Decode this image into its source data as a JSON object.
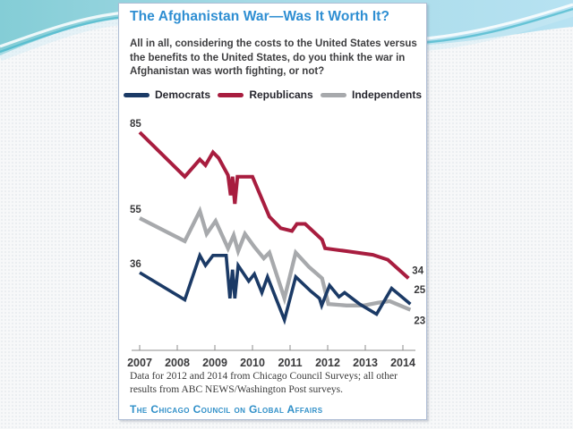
{
  "theme": {
    "band_left_color": "#84cdd6",
    "band_right_color": "#b7e2f2",
    "accent_blue": "#2e8ed2"
  },
  "card": {
    "title": "The Afghanistan War—Was It Worth It?",
    "title_color": "#2e8ed2",
    "subtitle_lines": [
      "All in all, considering the costs to the United States versus",
      "the benefits to the United States, do you think the war in",
      "Afghanistan was worth fighting, or not?"
    ],
    "legend": [
      {
        "label": "Democrats",
        "color": "#1b3a66"
      },
      {
        "label": "Republicans",
        "color": "#a81d3f"
      },
      {
        "label": "Independents",
        "color": "#a7a9ac"
      }
    ],
    "footnote_lines": [
      "Data for 2012 and 2014 from Chicago Council Surveys; all other",
      "results from ABC NEWS/Washington Post surveys."
    ],
    "brand": "The Chicago Council on Global Affairs",
    "brand_color": "#2f8fc8"
  },
  "chart_data": {
    "type": "line",
    "title": "The Afghanistan War—Was It Worth It?",
    "xlabel": "",
    "ylabel": "",
    "x_ticks": [
      2007,
      2008,
      2009,
      2010,
      2011,
      2012,
      2013,
      2014
    ],
    "x_range": [
      2007,
      2014.2
    ],
    "y_axis_visible": false,
    "grid": false,
    "legend_position": "top",
    "axis_color": "#8c8c8c",
    "label_color": "#3a3a3c",
    "series": [
      {
        "name": "Democrats",
        "color": "#1b3a66",
        "start_label": "36",
        "end_label": "25",
        "points": [
          [
            2007,
            36
          ],
          [
            2008.2,
            26.5
          ],
          [
            2008.6,
            42
          ],
          [
            2008.75,
            38.5
          ],
          [
            2008.95,
            42
          ],
          [
            2009.3,
            42
          ],
          [
            2009.4,
            27
          ],
          [
            2009.47,
            37
          ],
          [
            2009.53,
            27
          ],
          [
            2009.62,
            38.5
          ],
          [
            2009.9,
            33
          ],
          [
            2010.05,
            35.5
          ],
          [
            2010.25,
            29
          ],
          [
            2010.4,
            34.5
          ],
          [
            2010.85,
            19.5
          ],
          [
            2011.15,
            34.5
          ],
          [
            2011.55,
            29.5
          ],
          [
            2011.78,
            27
          ],
          [
            2011.84,
            24.5
          ],
          [
            2012.05,
            31.5
          ],
          [
            2012.3,
            27.5
          ],
          [
            2012.45,
            29
          ],
          [
            2012.85,
            25
          ],
          [
            2013.3,
            21.5
          ],
          [
            2013.7,
            30.5
          ],
          [
            2014.2,
            25
          ]
        ]
      },
      {
        "name": "Republicans",
        "color": "#a81d3f",
        "start_label": "85",
        "end_label": "34",
        "points": [
          [
            2007,
            85
          ],
          [
            2008.2,
            69.5
          ],
          [
            2008.6,
            75.5
          ],
          [
            2008.75,
            73.5
          ],
          [
            2008.95,
            78
          ],
          [
            2009.1,
            76
          ],
          [
            2009.35,
            70
          ],
          [
            2009.42,
            63
          ],
          [
            2009.47,
            69.5
          ],
          [
            2009.53,
            60
          ],
          [
            2009.6,
            69.5
          ],
          [
            2010,
            69.5
          ],
          [
            2010.45,
            55.5
          ],
          [
            2010.75,
            51.5
          ],
          [
            2011.05,
            50.5
          ],
          [
            2011.18,
            53
          ],
          [
            2011.4,
            53
          ],
          [
            2011.85,
            47.5
          ],
          [
            2011.93,
            44.5
          ],
          [
            2012.5,
            43.5
          ],
          [
            2013.2,
            42.2
          ],
          [
            2013.6,
            40.5
          ],
          [
            2014.15,
            34
          ]
        ]
      },
      {
        "name": "Independents",
        "color": "#a7a9ac",
        "start_label": "55",
        "end_label": "23",
        "points": [
          [
            2007,
            55
          ],
          [
            2008.2,
            47
          ],
          [
            2008.6,
            57.5
          ],
          [
            2008.78,
            49.5
          ],
          [
            2009.02,
            54
          ],
          [
            2009.35,
            44.5
          ],
          [
            2009.5,
            49
          ],
          [
            2009.62,
            43.5
          ],
          [
            2009.8,
            49.5
          ],
          [
            2010.05,
            45
          ],
          [
            2010.3,
            41
          ],
          [
            2010.45,
            43
          ],
          [
            2010.85,
            27
          ],
          [
            2011.15,
            43
          ],
          [
            2011.5,
            38
          ],
          [
            2011.85,
            34
          ],
          [
            2012.02,
            25
          ],
          [
            2012.5,
            24.5
          ],
          [
            2012.95,
            24.5
          ],
          [
            2013.35,
            25.5
          ],
          [
            2013.65,
            26
          ],
          [
            2014.2,
            23
          ]
        ]
      }
    ]
  }
}
